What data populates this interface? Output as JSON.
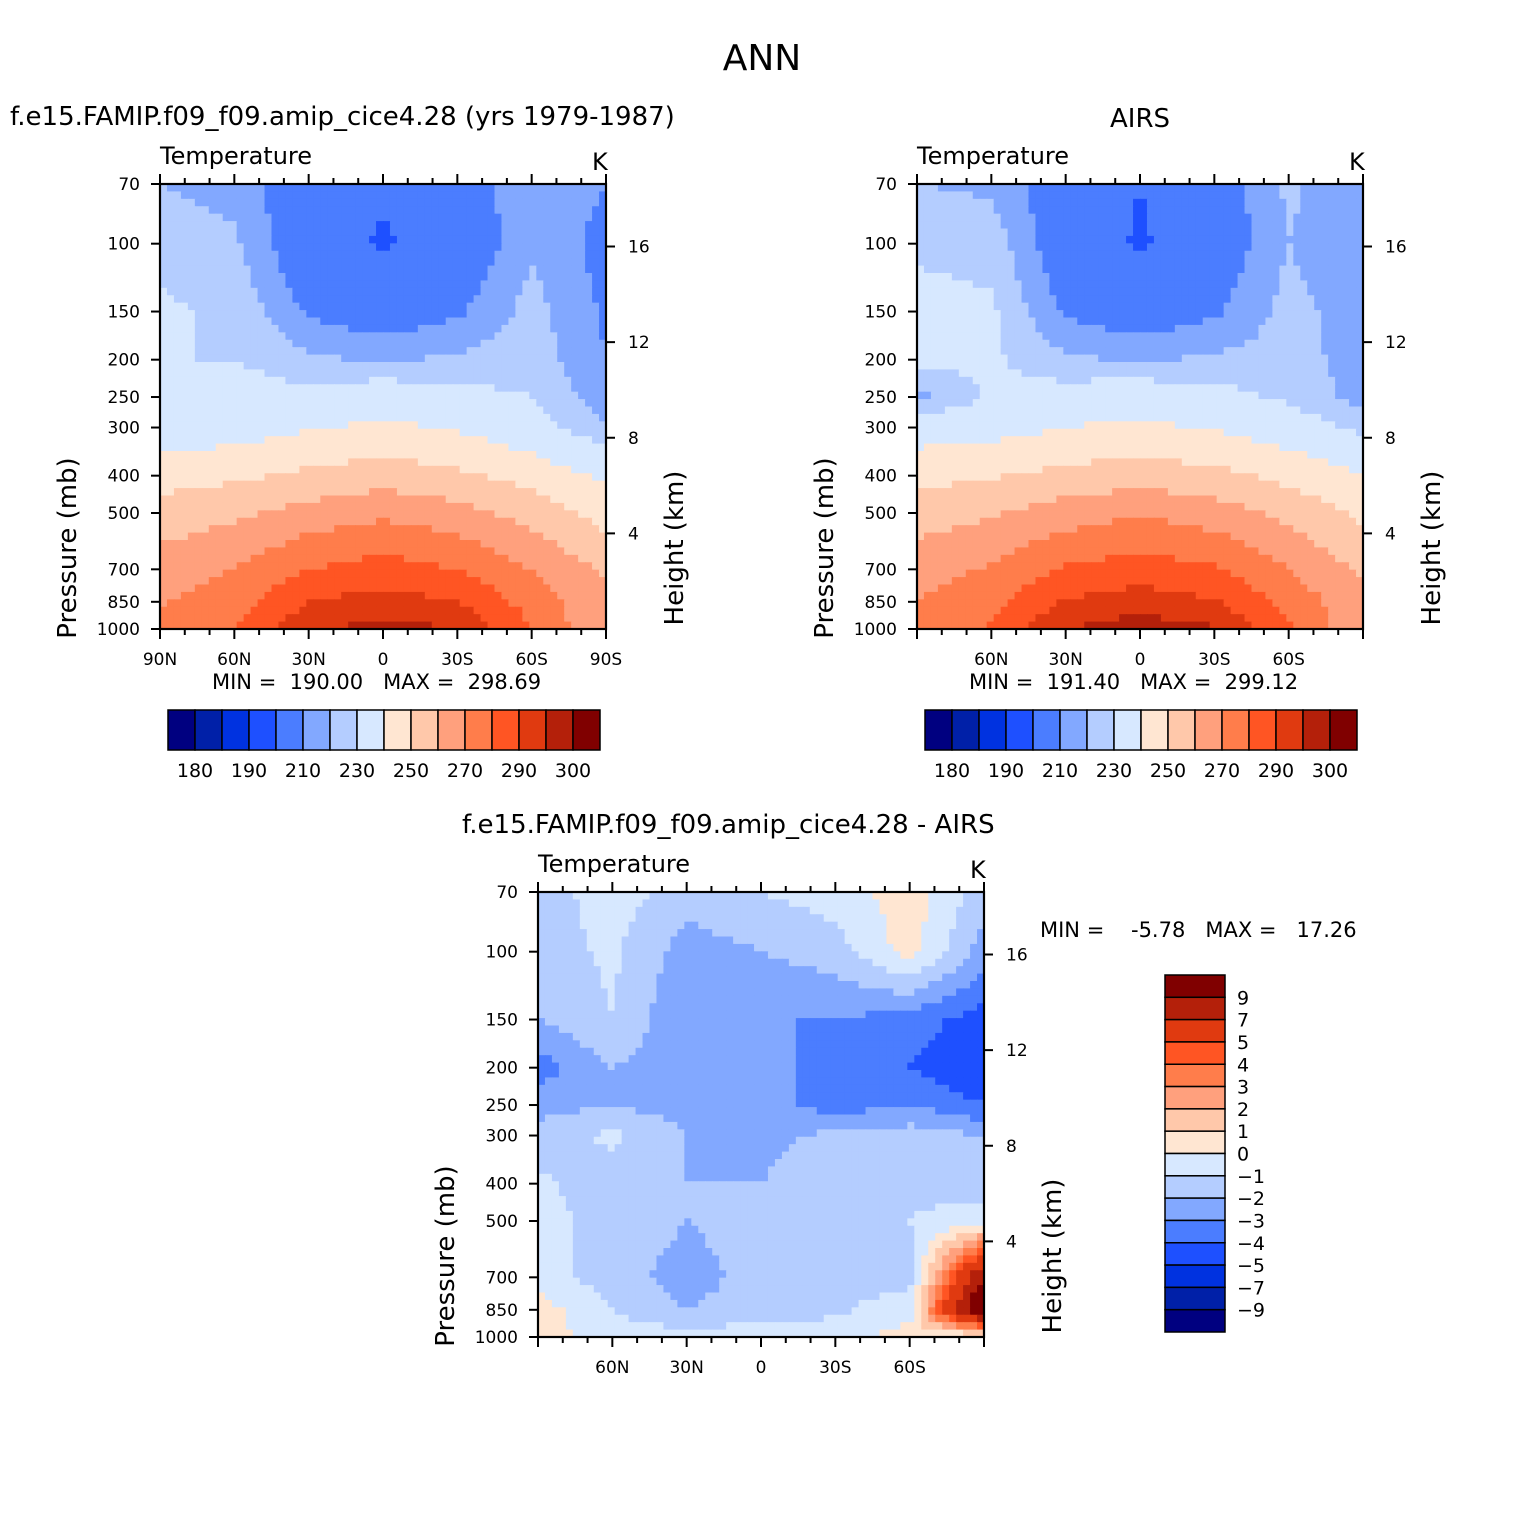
{
  "title": "ANN",
  "colors": {
    "abs_palette": [
      "#000080",
      "#0020a8",
      "#0032e0",
      "#1e50ff",
      "#4b7dff",
      "#82a8ff",
      "#b4cdff",
      "#d7e8ff",
      "#ffe6d2",
      "#ffc8aa",
      "#ffa07d",
      "#ff7d4b",
      "#ff5523",
      "#e03a10",
      "#b4200a",
      "#800000"
    ],
    "diff_palette": [
      "#000080",
      "#0020a8",
      "#0032e0",
      "#1e50ff",
      "#4b7dff",
      "#82a8ff",
      "#b4cdff",
      "#d7e8ff",
      "#ffe6d2",
      "#ffc8aa",
      "#ffa07d",
      "#ff7d4b",
      "#ff5523",
      "#e03a10",
      "#b4200a",
      "#800000"
    ]
  },
  "panels": [
    {
      "id": "model",
      "case_title": "f.e15.FAMIP.f09_f09.amip_cice4.28 (yrs 1979-1987)",
      "variable": "Temperature",
      "units": "K",
      "y_label": "Pressure (mb)",
      "y2_label": "Height (km)",
      "min_max": "MIN =  190.00   MAX =  298.69"
    },
    {
      "id": "obs",
      "case_title": "AIRS",
      "variable": "Temperature",
      "units": "K",
      "y_label": "Pressure (mb)",
      "y2_label": "Height (km)",
      "min_max": "MIN =  191.40   MAX =  299.12"
    },
    {
      "id": "diff",
      "case_title": "f.e15.FAMIP.f09_f09.amip_cice4.28 - AIRS",
      "variable": "Temperature",
      "units": "K",
      "y_label": "Pressure (mb)",
      "y2_label": "Height (km)",
      "min_max": "MIN =    -5.78   MAX =   17.26"
    }
  ],
  "abs_colorbar_labels": [
    "180",
    "190",
    "210",
    "230",
    "250",
    "270",
    "290",
    "300"
  ],
  "diff_colorbar_labels": [
    "9",
    "7",
    "5",
    "4",
    "3",
    "2",
    "1",
    "0",
    "-1",
    "-2",
    "-3",
    "-4",
    "-5",
    "-7",
    "-9"
  ],
  "chart_data": [
    {
      "type": "heatmap",
      "title": "f.e15.FAMIP.f09_f09.amip_cice4.28 (yrs 1979-1987)",
      "xlabel": "",
      "ylabel": "Pressure (mb)",
      "x_ticks": [
        "90N",
        "60N",
        "30N",
        "0",
        "30S",
        "60S",
        "90S"
      ],
      "y_ticks": [
        70,
        100,
        150,
        200,
        250,
        300,
        400,
        500,
        700,
        850,
        1000
      ],
      "y2_ticks": [
        4,
        8,
        12,
        16
      ],
      "y2_label": "Height (km)",
      "y_scale": "log",
      "y_inverted": true,
      "min": 190.0,
      "max": 298.69,
      "approx_field": {
        "lat": [
          90,
          60,
          30,
          0,
          -30,
          -60,
          -90
        ],
        "pressure": [
          70,
          100,
          150,
          200,
          250,
          300,
          400,
          500,
          700,
          850,
          1000
        ],
        "values": [
          [
            215,
            213,
            205,
            201,
            205,
            215,
            210
          ],
          [
            218,
            216,
            204,
            199,
            204,
            214,
            208
          ],
          [
            221,
            219,
            209,
            206,
            209,
            217,
            209
          ],
          [
            220,
            220,
            216,
            214,
            216,
            218,
            210
          ],
          [
            222,
            223,
            222,
            225,
            222,
            220,
            212
          ],
          [
            224,
            225,
            229,
            232,
            229,
            223,
            215
          ],
          [
            236,
            238,
            242,
            245,
            242,
            236,
            228
          ],
          [
            244,
            248,
            254,
            258,
            254,
            246,
            236
          ],
          [
            255,
            260,
            270,
            274,
            270,
            260,
            248
          ],
          [
            259,
            266,
            280,
            284,
            280,
            266,
            252
          ],
          [
            262,
            270,
            288,
            294,
            290,
            270,
            250
          ]
        ]
      },
      "levels": [
        180,
        185,
        190,
        200,
        210,
        215,
        220,
        230,
        240,
        250,
        260,
        270,
        280,
        290,
        295,
        300
      ]
    },
    {
      "type": "heatmap",
      "title": "AIRS",
      "xlabel": "",
      "ylabel": "Pressure (mb)",
      "x_ticks": [
        "60N",
        "30N",
        "0",
        "30S",
        "60S"
      ],
      "y_ticks": [
        70,
        100,
        150,
        200,
        250,
        300,
        400,
        500,
        700,
        850,
        1000
      ],
      "y2_ticks": [
        4,
        8,
        12,
        16
      ],
      "y2_label": "Height (km)",
      "y_scale": "log",
      "y_inverted": true,
      "min": 191.4,
      "max": 299.12,
      "approx_field": {
        "lat": [
          90,
          60,
          30,
          0,
          -30,
          -60,
          -90
        ],
        "pressure": [
          70,
          100,
          150,
          200,
          250,
          300,
          400,
          500,
          700,
          850,
          1000
        ],
        "values": [
          [
            215,
            214,
            205,
            200,
            206,
            216,
            211
          ],
          [
            219,
            218,
            205,
            199,
            205,
            215,
            210
          ],
          [
            222,
            221,
            209,
            206,
            209,
            217,
            212
          ],
          [
            222,
            221,
            216,
            214,
            216,
            217,
            213
          ],
          [
            213,
            221,
            223,
            225,
            222,
            219,
            213
          ],
          [
            225,
            226,
            230,
            232,
            229,
            224,
            218
          ],
          [
            237,
            239,
            243,
            245,
            243,
            237,
            230
          ],
          [
            245,
            249,
            255,
            259,
            255,
            247,
            238
          ],
          [
            256,
            261,
            271,
            275,
            271,
            260,
            248
          ],
          [
            260,
            267,
            281,
            285,
            281,
            267,
            252
          ],
          [
            263,
            271,
            290,
            296,
            291,
            271,
            252
          ]
        ]
      },
      "levels": [
        180,
        185,
        190,
        200,
        210,
        215,
        220,
        230,
        240,
        250,
        260,
        270,
        280,
        290,
        295,
        300
      ]
    },
    {
      "type": "heatmap",
      "title": "f.e15.FAMIP.f09_f09.amip_cice4.28 - AIRS",
      "xlabel": "",
      "ylabel": "Pressure (mb)",
      "x_ticks": [
        "60N",
        "30N",
        "0",
        "30S",
        "60S"
      ],
      "y_ticks": [
        70,
        100,
        150,
        200,
        250,
        300,
        400,
        500,
        700,
        850,
        1000
      ],
      "y2_ticks": [
        4,
        8,
        12,
        16
      ],
      "y2_label": "Height (km)",
      "y_scale": "log",
      "y_inverted": true,
      "min": -5.78,
      "max": 17.26,
      "approx_field": {
        "lat": [
          90,
          60,
          30,
          0,
          -30,
          -60,
          -90
        ],
        "pressure": [
          70,
          100,
          150,
          200,
          250,
          300,
          400,
          500,
          700,
          850,
          1000
        ],
        "values": [
          [
            -1.5,
            -0.5,
            -1.5,
            -1.0,
            -0.5,
            0.5,
            -1.5
          ],
          [
            -1.5,
            -0.8,
            -2.5,
            -2.0,
            -1.5,
            0.5,
            -2.5
          ],
          [
            -2.0,
            -1.0,
            -3.0,
            -3.0,
            -3.0,
            -3.5,
            -4.5
          ],
          [
            -3.5,
            -2.0,
            -2.5,
            -2.5,
            -3.5,
            -4.0,
            -5.0
          ],
          [
            -2.5,
            -2.0,
            -2.5,
            -2.5,
            -3.5,
            -3.0,
            -4.0
          ],
          [
            -1.5,
            -0.8,
            -2.0,
            -2.2,
            -1.8,
            -1.5,
            -2.0
          ],
          [
            -0.8,
            -1.5,
            -2.0,
            -2.0,
            -1.5,
            -1.2,
            -1.5
          ],
          [
            -0.8,
            -1.2,
            -2.0,
            -1.5,
            -1.2,
            -1.0,
            -0.5
          ],
          [
            -0.5,
            -1.5,
            -2.5,
            -1.5,
            -1.0,
            -1.5,
            9.0
          ],
          [
            0.5,
            -1.0,
            -2.0,
            -1.5,
            -1.2,
            -0.5,
            12.0
          ],
          [
            0.5,
            -0.5,
            -0.5,
            -0.5,
            -0.5,
            0.5,
            -0.5
          ]
        ]
      },
      "levels": [
        -9,
        -7,
        -5,
        -4,
        -3,
        -2,
        -1,
        0,
        1,
        2,
        3,
        4,
        5,
        7,
        9
      ]
    }
  ]
}
